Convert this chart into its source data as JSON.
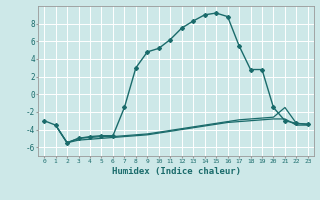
{
  "xlabel": "Humidex (Indice chaleur)",
  "bg_color": "#cde8e8",
  "grid_color": "#ffffff",
  "line_color": "#1a6b6b",
  "xlim": [
    -0.5,
    23.5
  ],
  "ylim": [
    -7,
    10
  ],
  "xticks": [
    0,
    1,
    2,
    3,
    4,
    5,
    6,
    7,
    8,
    9,
    10,
    11,
    12,
    13,
    14,
    15,
    16,
    17,
    18,
    19,
    20,
    21,
    22,
    23
  ],
  "yticks": [
    -6,
    -4,
    -2,
    0,
    2,
    4,
    6,
    8
  ],
  "curve1_x": [
    0,
    1,
    2,
    3,
    4,
    5,
    6,
    7,
    8,
    9,
    10,
    11,
    12,
    13,
    14,
    15,
    16,
    17,
    18,
    19,
    20,
    21,
    22,
    23
  ],
  "curve1_y": [
    -3.0,
    -3.5,
    -5.5,
    -5.0,
    -4.8,
    -4.7,
    -4.7,
    -1.5,
    3.0,
    4.8,
    5.2,
    6.2,
    7.5,
    8.3,
    9.0,
    9.2,
    8.8,
    5.5,
    2.8,
    2.8,
    -1.5,
    -3.0,
    -3.3,
    -3.4
  ],
  "curve2_x": [
    1,
    2,
    3,
    4,
    5,
    6,
    7,
    8,
    9,
    10,
    11,
    12,
    13,
    14,
    15,
    16,
    17,
    18,
    19,
    20,
    21,
    22,
    23
  ],
  "curve2_y": [
    -3.5,
    -5.5,
    -5.0,
    -4.9,
    -4.8,
    -4.8,
    -4.7,
    -4.6,
    -4.5,
    -4.3,
    -4.1,
    -3.9,
    -3.7,
    -3.5,
    -3.3,
    -3.1,
    -2.9,
    -2.8,
    -2.7,
    -2.6,
    -1.5,
    -3.3,
    -3.4
  ],
  "curve3_x": [
    1,
    2,
    3,
    4,
    5,
    6,
    7,
    8,
    9,
    10,
    11,
    12,
    13,
    14,
    15,
    16,
    17,
    18,
    19,
    20,
    21,
    22,
    23
  ],
  "curve3_y": [
    -3.5,
    -5.5,
    -5.2,
    -5.1,
    -5.0,
    -4.9,
    -4.8,
    -4.7,
    -4.6,
    -4.4,
    -4.2,
    -4.0,
    -3.8,
    -3.6,
    -3.4,
    -3.2,
    -3.1,
    -3.0,
    -2.9,
    -2.8,
    -2.8,
    -3.5,
    -3.5
  ]
}
